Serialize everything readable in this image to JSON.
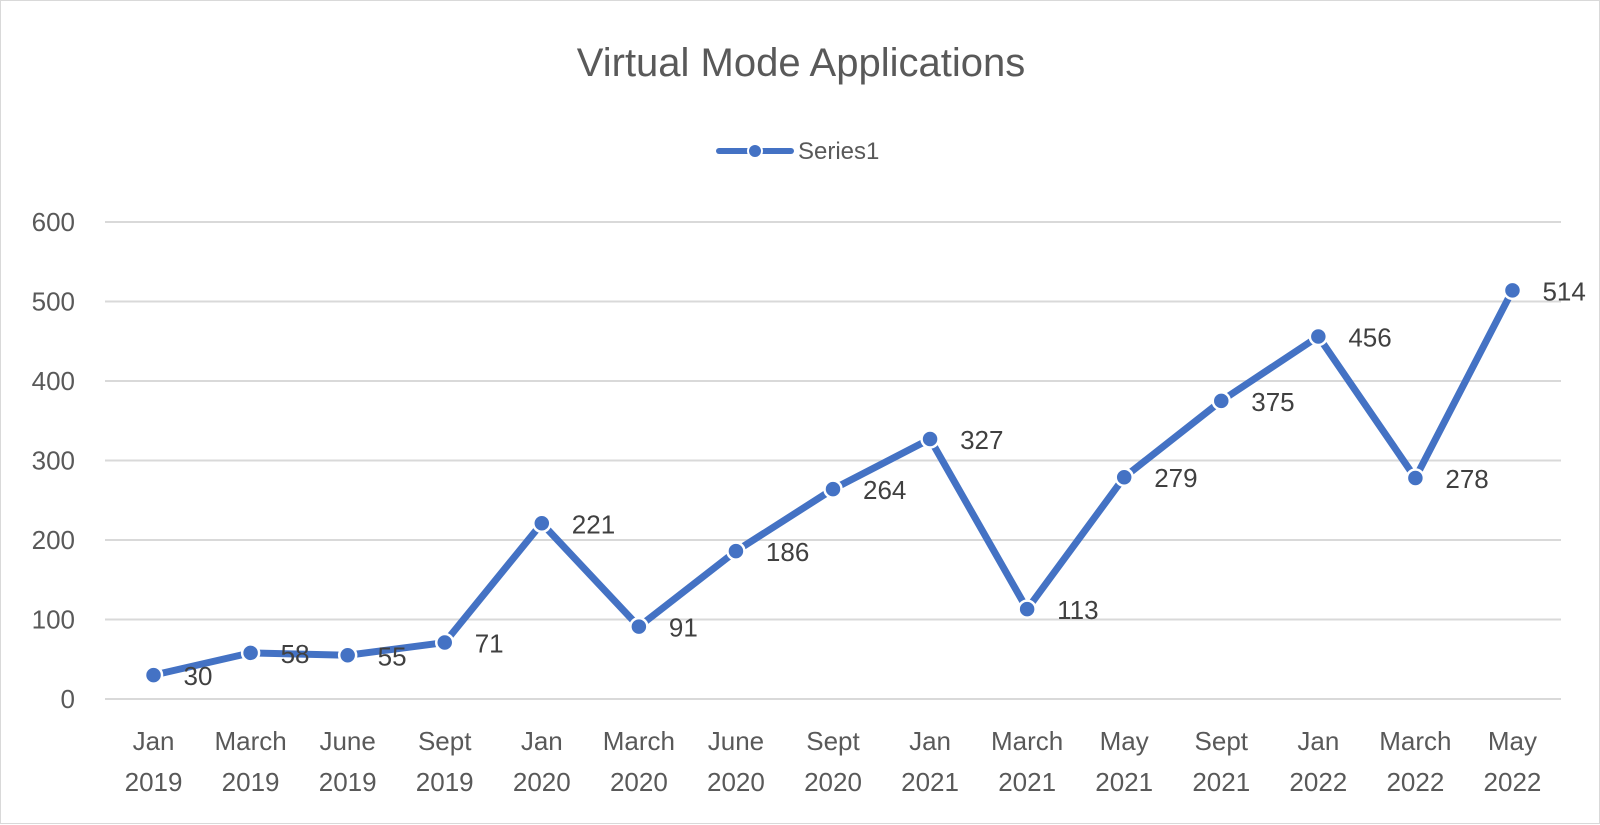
{
  "chart_data": {
    "type": "line",
    "title": "Virtual Mode Applications",
    "xlabel": "",
    "ylabel": "",
    "categories": [
      [
        "Jan",
        "2019"
      ],
      [
        "March",
        "2019"
      ],
      [
        "June",
        "2019"
      ],
      [
        "Sept",
        "2019"
      ],
      [
        "Jan",
        "2020"
      ],
      [
        "March",
        "2020"
      ],
      [
        "June",
        "2020"
      ],
      [
        "Sept",
        "2020"
      ],
      [
        "Jan",
        "2021"
      ],
      [
        "March",
        "2021"
      ],
      [
        "May",
        "2021"
      ],
      [
        "Sept",
        "2021"
      ],
      [
        "Jan",
        "2022"
      ],
      [
        "March",
        "2022"
      ],
      [
        "May",
        "2022"
      ]
    ],
    "series": [
      {
        "name": "Series1",
        "values": [
          30,
          58,
          55,
          71,
          221,
          91,
          186,
          264,
          327,
          113,
          279,
          375,
          456,
          278,
          514
        ],
        "color": "#4472c4"
      }
    ],
    "ylim": [
      0,
      600
    ],
    "yticks": [
      "0",
      "100",
      "200",
      "300",
      "400",
      "500",
      "600"
    ],
    "grid": true,
    "legend_position": "top-center",
    "data_labels": true
  }
}
